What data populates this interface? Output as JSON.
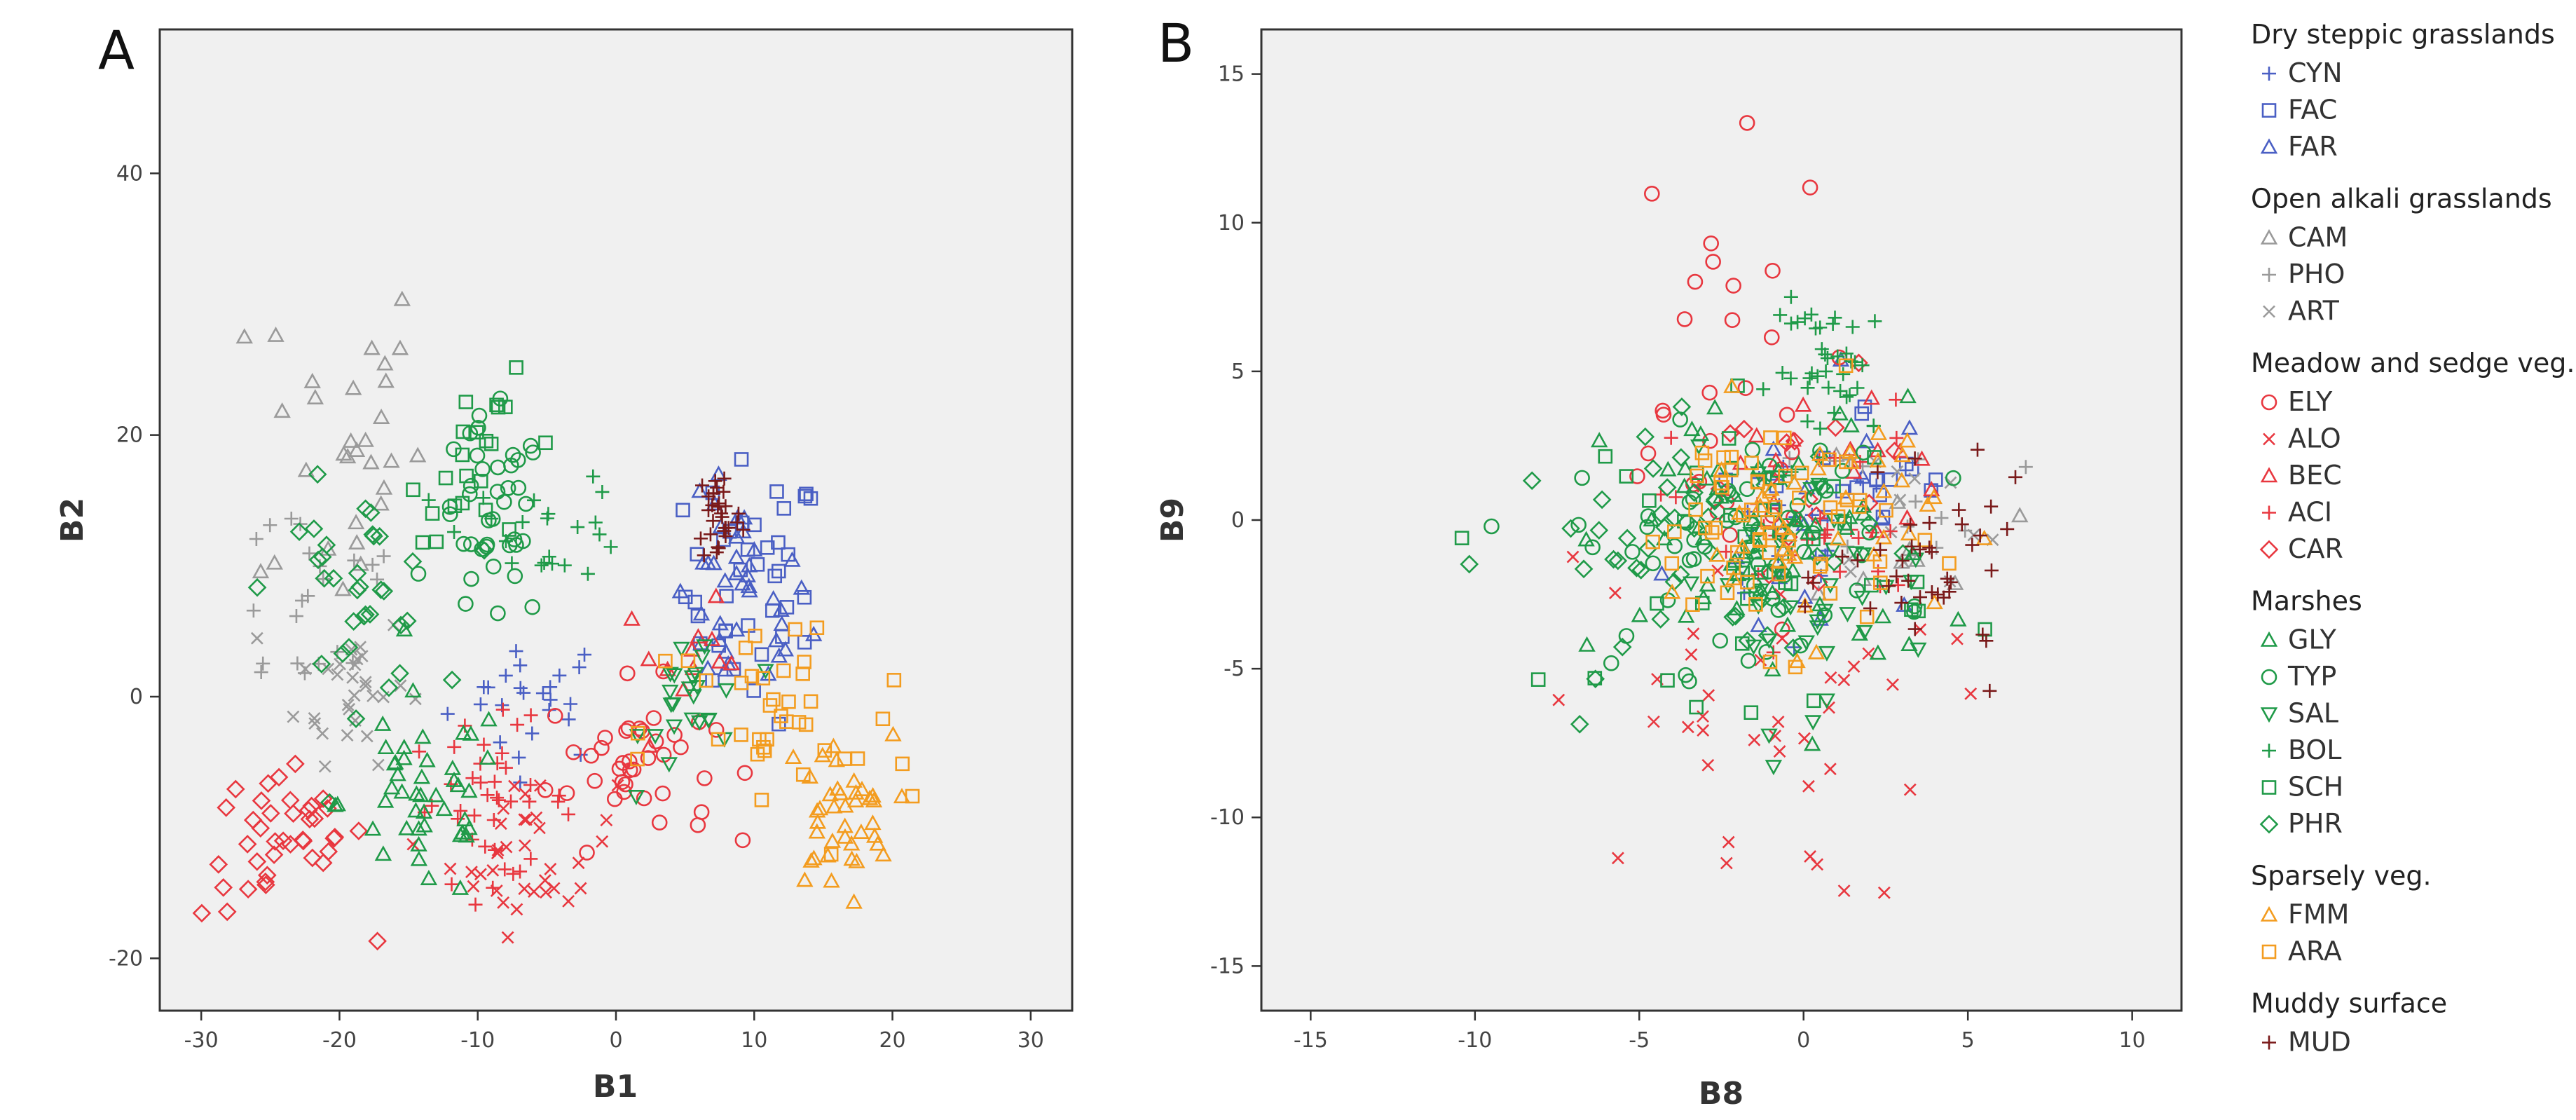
{
  "legend": {
    "groups": [
      {
        "title": "Dry steppic grasslands",
        "items": [
          {
            "code": "CYN",
            "marker": "plus",
            "color": "#4a5fc4"
          },
          {
            "code": "FAC",
            "marker": "square",
            "color": "#4a5fc4"
          },
          {
            "code": "FAR",
            "marker": "triangle",
            "color": "#4a5fc4"
          }
        ]
      },
      {
        "title": "Open alkali grasslands",
        "items": [
          {
            "code": "CAM",
            "marker": "triangle",
            "color": "#9a9a9a"
          },
          {
            "code": "PHO",
            "marker": "plus",
            "color": "#9a9a9a"
          },
          {
            "code": "ART",
            "marker": "cross",
            "color": "#9a9a9a"
          }
        ]
      },
      {
        "title": "Meadow and sedge veg.",
        "items": [
          {
            "code": "ELY",
            "marker": "circle",
            "color": "#e8373f"
          },
          {
            "code": "ALO",
            "marker": "cross",
            "color": "#e8373f"
          },
          {
            "code": "BEC",
            "marker": "triangle",
            "color": "#e8373f"
          },
          {
            "code": "ACI",
            "marker": "plus",
            "color": "#e8373f"
          },
          {
            "code": "CAR",
            "marker": "diamond",
            "color": "#e8373f"
          }
        ]
      },
      {
        "title": "Marshes",
        "items": [
          {
            "code": "GLY",
            "marker": "triangle",
            "color": "#1f9a48"
          },
          {
            "code": "TYP",
            "marker": "circle",
            "color": "#1f9a48"
          },
          {
            "code": "SAL",
            "marker": "triangle-down",
            "color": "#1f9a48"
          },
          {
            "code": "BOL",
            "marker": "plus",
            "color": "#1f9a48"
          },
          {
            "code": "SCH",
            "marker": "square",
            "color": "#1f9a48"
          },
          {
            "code": "PHR",
            "marker": "diamond",
            "color": "#1f9a48"
          }
        ]
      },
      {
        "title": "Sparsely veg.",
        "items": [
          {
            "code": "FMM",
            "marker": "triangle",
            "color": "#f39c1f"
          },
          {
            "code": "ARA",
            "marker": "square",
            "color": "#f39c1f"
          }
        ]
      },
      {
        "title": "Muddy surface",
        "items": [
          {
            "code": "MUD",
            "marker": "plus",
            "color": "#7a1a1a"
          }
        ]
      }
    ]
  },
  "chart_data": [
    {
      "panel": "A",
      "type": "scatter",
      "xlabel": "B1",
      "ylabel": "B2",
      "xlim": [
        -33,
        33
      ],
      "ylim": [
        -24,
        51
      ],
      "xticks": [
        -30,
        -20,
        -10,
        0,
        10,
        20,
        30
      ],
      "yticks": [
        -20,
        0,
        20,
        40
      ],
      "grid": false,
      "clusters": [
        {
          "code": "CYN",
          "cx": -6,
          "cy": 0,
          "sx": 3,
          "sy": 2.5,
          "n": 24
        },
        {
          "code": "FAC",
          "cx": 10,
          "cy": 8,
          "sx": 2.5,
          "sy": 5,
          "n": 40
        },
        {
          "code": "FAR",
          "cx": 9,
          "cy": 7,
          "sx": 2.5,
          "sy": 4,
          "n": 40
        },
        {
          "code": "CAM",
          "cx": -20,
          "cy": 20,
          "sx": 3,
          "sy": 7,
          "n": 30
        },
        {
          "code": "PHO",
          "cx": -22,
          "cy": 8,
          "sx": 4,
          "sy": 5,
          "n": 22
        },
        {
          "code": "ART",
          "cx": -19,
          "cy": 1,
          "sx": 2,
          "sy": 3,
          "n": 30
        },
        {
          "code": "ELY",
          "cx": 1,
          "cy": -5,
          "sx": 3,
          "sy": 3,
          "n": 40
        },
        {
          "code": "ALO",
          "cx": -6,
          "cy": -12,
          "sx": 3,
          "sy": 3,
          "n": 35
        },
        {
          "code": "BEC",
          "cx": 5,
          "cy": 3,
          "sx": 2.5,
          "sy": 2,
          "n": 12
        },
        {
          "code": "ACI",
          "cx": -9,
          "cy": -8,
          "sx": 3,
          "sy": 3,
          "n": 40
        },
        {
          "code": "CAR",
          "cx": -24,
          "cy": -11,
          "sx": 3,
          "sy": 3,
          "n": 40
        },
        {
          "code": "GLY",
          "cx": -14,
          "cy": -8,
          "sx": 3,
          "sy": 4,
          "n": 45
        },
        {
          "code": "TYP",
          "cx": -9,
          "cy": 13,
          "sx": 2,
          "sy": 4,
          "n": 40
        },
        {
          "code": "SAL",
          "cx": 6,
          "cy": 0,
          "sx": 2,
          "sy": 3,
          "n": 25
        },
        {
          "code": "BOL",
          "cx": -5,
          "cy": 13,
          "sx": 3,
          "sy": 2,
          "n": 22
        },
        {
          "code": "SCH",
          "cx": -9,
          "cy": 18,
          "sx": 3,
          "sy": 3,
          "n": 22
        },
        {
          "code": "PHR",
          "cx": -19,
          "cy": 8,
          "sx": 3,
          "sy": 4,
          "n": 35
        },
        {
          "code": "FMM",
          "cx": 16,
          "cy": -9,
          "sx": 2,
          "sy": 3,
          "n": 40
        },
        {
          "code": "ARA",
          "cx": 12,
          "cy": -3,
          "sx": 5,
          "sy": 5,
          "n": 40
        },
        {
          "code": "MUD",
          "cx": 7.5,
          "cy": 14,
          "sx": 0.8,
          "sy": 2,
          "n": 30
        }
      ]
    },
    {
      "panel": "B",
      "type": "scatter",
      "xlabel": "B8",
      "ylabel": "B9",
      "xlim": [
        -16.5,
        11.5
      ],
      "ylim": [
        -16.5,
        16.5
      ],
      "xticks": [
        -15,
        -10,
        -5,
        0,
        5,
        10
      ],
      "yticks": [
        -15,
        -10,
        -5,
        0,
        5,
        10,
        15
      ],
      "grid": false,
      "clusters": [
        {
          "code": "CYN",
          "cx": 0,
          "cy": 0,
          "sx": 1.5,
          "sy": 1.5,
          "n": 20
        },
        {
          "code": "FAC",
          "cx": 2,
          "cy": 1,
          "sx": 1.5,
          "sy": 1.5,
          "n": 15
        },
        {
          "code": "FAR",
          "cx": 0,
          "cy": 0,
          "sx": 2,
          "sy": 3,
          "n": 15
        },
        {
          "code": "CAM",
          "cx": 3,
          "cy": 0,
          "sx": 1.5,
          "sy": 1.5,
          "n": 10
        },
        {
          "code": "PHO",
          "cx": 3.5,
          "cy": 1,
          "sx": 1.5,
          "sy": 1,
          "n": 12
        },
        {
          "code": "ART",
          "cx": 3,
          "cy": 0,
          "sx": 1.5,
          "sy": 1.5,
          "n": 12
        },
        {
          "code": "ELY",
          "cx": -3,
          "cy": 4,
          "sx": 2,
          "sy": 4,
          "n": 30
        },
        {
          "code": "ALO",
          "cx": -2,
          "cy": -7,
          "sx": 3,
          "sy": 3,
          "n": 40
        },
        {
          "code": "BEC",
          "cx": 1,
          "cy": 2,
          "sx": 1.5,
          "sy": 1.5,
          "n": 15
        },
        {
          "code": "ACI",
          "cx": 0,
          "cy": 0,
          "sx": 2,
          "sy": 2,
          "n": 30
        },
        {
          "code": "CAR",
          "cx": 0,
          "cy": 1,
          "sx": 2,
          "sy": 2,
          "n": 15
        },
        {
          "code": "GLY",
          "cx": -1,
          "cy": -1,
          "sx": 2.5,
          "sy": 2.5,
          "n": 60
        },
        {
          "code": "TYP",
          "cx": -2,
          "cy": -1,
          "sx": 2.5,
          "sy": 2,
          "n": 60
        },
        {
          "code": "SAL",
          "cx": 0,
          "cy": -2,
          "sx": 2,
          "sy": 2,
          "n": 40
        },
        {
          "code": "BOL",
          "cx": 1,
          "cy": 5,
          "sx": 1,
          "sy": 1.2,
          "n": 40
        },
        {
          "code": "SCH",
          "cx": -1,
          "cy": -1,
          "sx": 2.5,
          "sy": 2.5,
          "n": 40
        },
        {
          "code": "PHR",
          "cx": -3,
          "cy": -1,
          "sx": 3,
          "sy": 2,
          "n": 50
        },
        {
          "code": "FMM",
          "cx": 0,
          "cy": 0,
          "sx": 2,
          "sy": 2,
          "n": 40
        },
        {
          "code": "ARA",
          "cx": -1,
          "cy": 0,
          "sx": 2,
          "sy": 2,
          "n": 60
        },
        {
          "code": "MUD",
          "cx": 4,
          "cy": -2,
          "sx": 1.5,
          "sy": 1.5,
          "n": 40
        }
      ]
    }
  ]
}
